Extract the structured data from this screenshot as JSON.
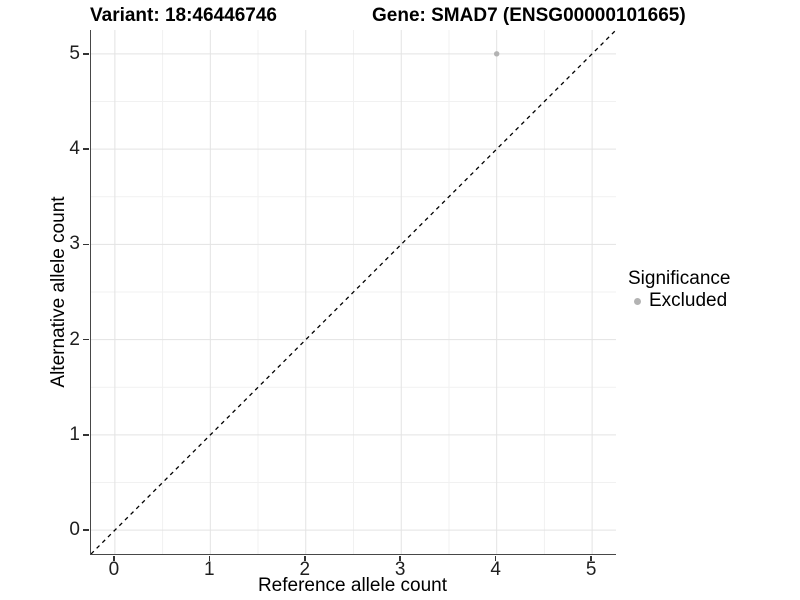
{
  "chart_data": {
    "type": "scatter",
    "titles": {
      "left": "Variant: 18:46446746",
      "right": "Gene: SMAD7 (ENSG00000101665)"
    },
    "xlabel": "Reference allele count",
    "ylabel": "Alternative allele count",
    "xlim": [
      -0.25,
      5.25
    ],
    "ylim": [
      -0.25,
      5.25
    ],
    "x_ticks": [
      0,
      1,
      2,
      3,
      4,
      5
    ],
    "y_ticks": [
      0,
      1,
      2,
      3,
      4,
      5
    ],
    "x_minor_ticks": [
      0.5,
      1.5,
      2.5,
      3.5,
      4.5
    ],
    "y_minor_ticks": [
      0.5,
      1.5,
      2.5,
      3.5,
      4.5
    ],
    "grid": "major+minor",
    "series": [
      {
        "name": "Excluded",
        "color": "#b3b3b3",
        "points": [
          {
            "x": 4,
            "y": 5
          }
        ]
      }
    ],
    "identity_line": {
      "style": "dashed",
      "color": "#000000",
      "x1": -0.25,
      "y1": -0.25,
      "x2": 5.25,
      "y2": 5.25
    },
    "legend": {
      "title": "Significance",
      "position": "right",
      "entries": [
        {
          "label": "Excluded",
          "color": "#b3b3b3"
        }
      ]
    }
  },
  "colors": {
    "background": "#ffffff",
    "grid_major": "#e3e3e3",
    "grid_minor": "#f1f1f1",
    "axis_line": "#474747",
    "tick_mark": "#333333",
    "point": "#b3b3b3",
    "text": "#000000"
  }
}
